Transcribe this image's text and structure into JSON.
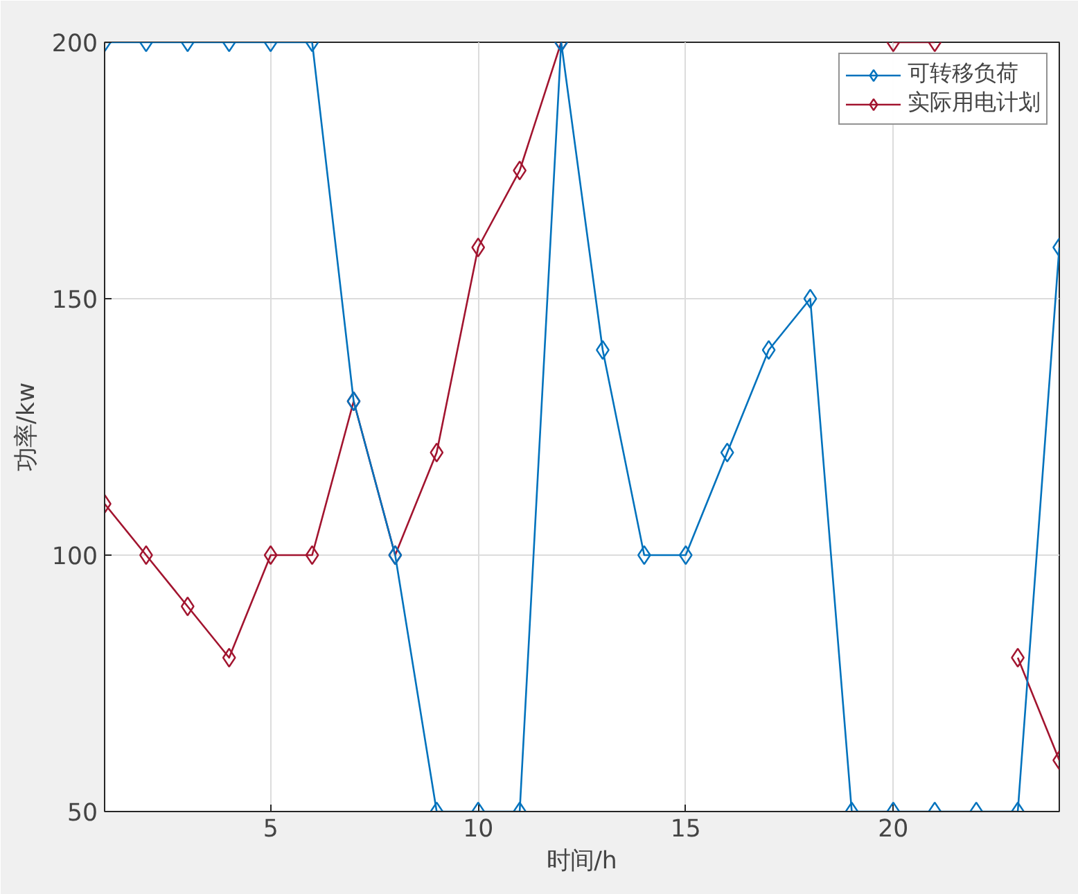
{
  "chart_data": {
    "type": "line",
    "xlabel": "时间/h",
    "ylabel": "功率/kw",
    "x": [
      1,
      2,
      3,
      4,
      5,
      6,
      7,
      8,
      9,
      10,
      11,
      12,
      13,
      14,
      15,
      16,
      17,
      18,
      19,
      20,
      21,
      22,
      23,
      24
    ],
    "series": [
      {
        "name": "可转移负荷",
        "color": "#0072bd",
        "values": [
          200,
          200,
          200,
          200,
          200,
          200,
          130,
          100,
          50,
          50,
          50,
          200,
          140,
          100,
          100,
          120,
          140,
          150,
          50,
          50,
          50,
          50,
          50,
          160
        ]
      },
      {
        "name": "实际用电计划",
        "color": "#a2142f",
        "values": [
          110,
          100,
          90,
          80,
          100,
          100,
          130,
          100,
          120,
          160,
          175,
          200,
          null,
          null,
          null,
          null,
          null,
          null,
          null,
          200,
          200,
          null,
          80,
          60
        ]
      }
    ],
    "xlim": [
      1,
      24
    ],
    "xticks": [
      5,
      10,
      15,
      20
    ],
    "ylim": [
      50,
      200
    ],
    "yticks": [
      50,
      100,
      150,
      200
    ],
    "grid": true,
    "legend": "top right",
    "marker": "diamond",
    "line_style": "solid"
  }
}
